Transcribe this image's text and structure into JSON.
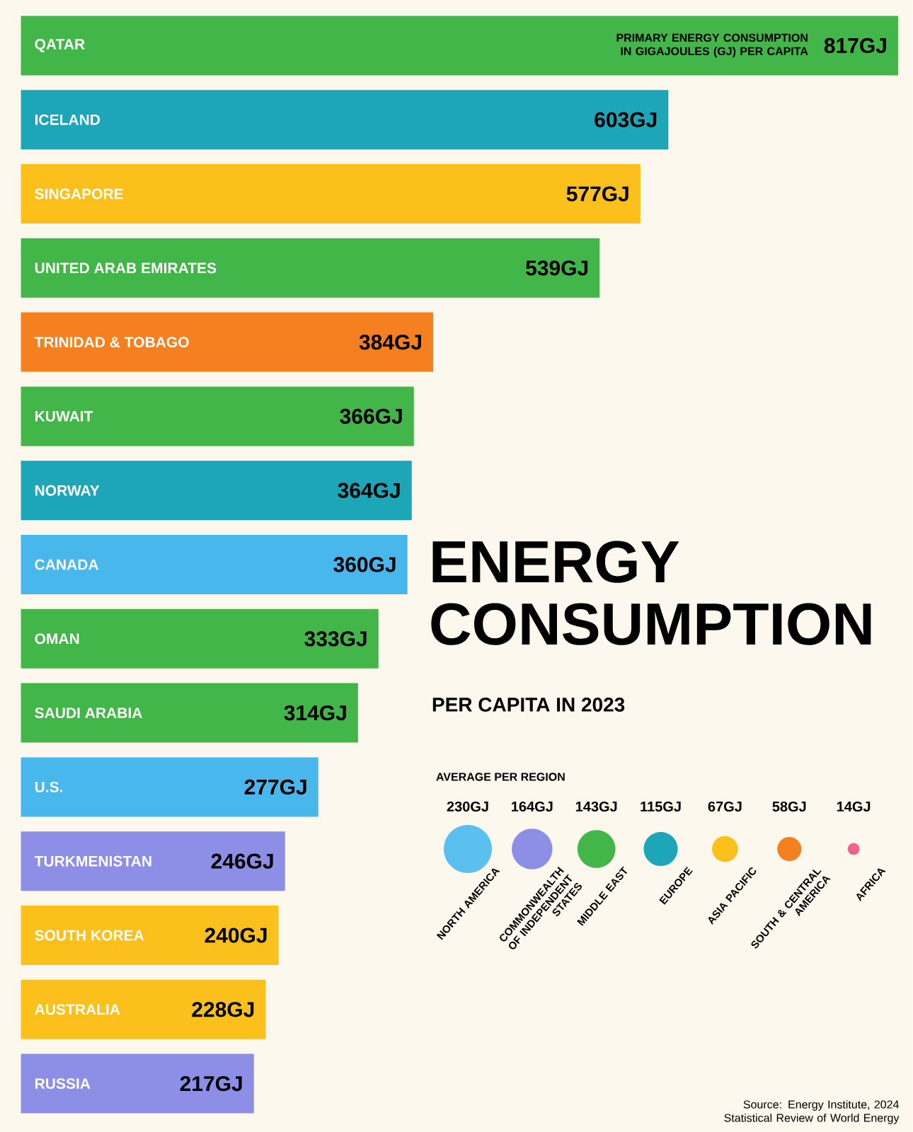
{
  "chart_data": [
    {
      "type": "bar",
      "orientation": "horizontal",
      "title": "ENERGY CONSUMPTION",
      "subtitle": "PER CAPITA IN 2023",
      "categories": [
        "QATAR",
        "ICELAND",
        "SINGAPORE",
        "UNITED ARAB EMIRATES",
        "TRINIDAD & TOBAGO",
        "KUWAIT",
        "NORWAY",
        "CANADA",
        "OMAN",
        "SAUDI ARABIA",
        "U.S.",
        "TURKMENISTAN",
        "SOUTH KOREA",
        "AUSTRALIA",
        "RUSSIA"
      ],
      "values": [
        817,
        603,
        577,
        539,
        384,
        366,
        364,
        360,
        333,
        314,
        277,
        246,
        240,
        228,
        217
      ],
      "value_labels": [
        "817GJ",
        "603GJ",
        "577GJ",
        "539GJ",
        "384GJ",
        "366GJ",
        "364GJ",
        "360GJ",
        "333GJ",
        "314GJ",
        "277GJ",
        "246GJ",
        "240GJ",
        "228GJ",
        "217GJ"
      ],
      "colors": [
        "#43b649",
        "#1ca6b8",
        "#fbc01b",
        "#43b649",
        "#f4801f",
        "#43b649",
        "#1ca6b8",
        "#48b7ec",
        "#43b649",
        "#43b649",
        "#48b7ec",
        "#8d8fe6",
        "#fbc01b",
        "#fbc01b",
        "#8d8fe6"
      ],
      "xlim": [
        0,
        820
      ],
      "annotations": [
        "PRIMARY ENERGY CONSUMPTION IN GIGAJOULES (GJ) PER CAPITA",
        "Source: Energy Institute, 2024 Statistical Review of World Energy"
      ]
    },
    {
      "type": "other",
      "title": "AVERAGE PER REGION",
      "categories": [
        "NORTH AMERICA",
        "COMMONWEALTH OF INDEPENDENT STATES",
        "MIDDLE EAST",
        "EUROPE",
        "ASIA PACIFIC",
        "SOUTH & CENTRAL AMERICA",
        "AFRICA"
      ],
      "values": [
        230,
        164,
        143,
        115,
        67,
        58,
        14
      ],
      "value_labels": [
        "230GJ",
        "164GJ",
        "143GJ",
        "115GJ",
        "67GJ",
        "58GJ",
        "14GJ"
      ],
      "colors": [
        "#5bbff0",
        "#8d8fe6",
        "#43b649",
        "#1ca6b8",
        "#fbc01b",
        "#f4801f",
        "#f0648c"
      ]
    }
  ]
}
